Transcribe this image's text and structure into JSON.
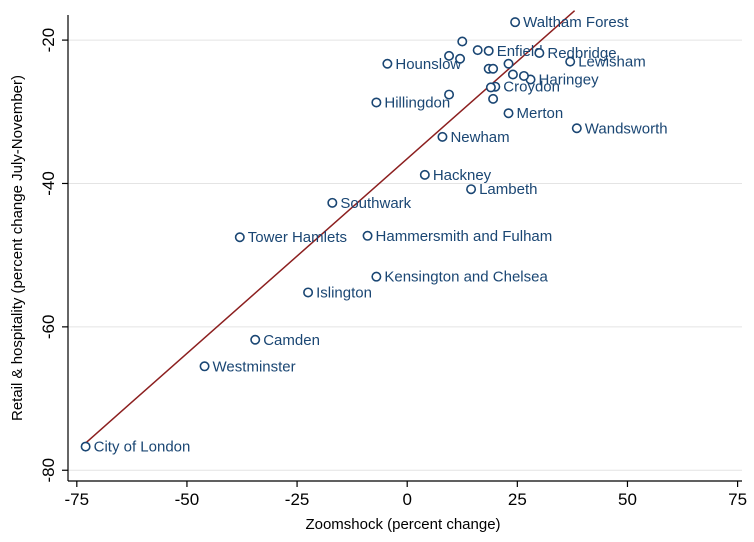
{
  "chart_data": {
    "type": "scatter",
    "title": "",
    "xlabel": "Zoomshock (percent change)",
    "ylabel": "Retail & hospitality (percent change July-November)",
    "xlim": [
      -77,
      76
    ],
    "ylim": [
      -81.5,
      -16.5
    ],
    "xticks": [
      -75,
      -50,
      -25,
      0,
      25,
      50,
      75
    ],
    "yticks": [
      -20,
      -40,
      -60,
      -80
    ],
    "grid": "horizontal",
    "points": [
      {
        "label": "Waltham Forest",
        "x": 24.5,
        "y": -17.5
      },
      {
        "label": "Enfield",
        "x": 18.5,
        "y": -21.5
      },
      {
        "label": "Redbridge",
        "x": 30.0,
        "y": -21.8
      },
      {
        "label": "Lewisham",
        "x": 37.0,
        "y": -23.0
      },
      {
        "label": "Hounslow",
        "x": -4.5,
        "y": -23.3
      },
      {
        "label": "Haringey",
        "x": 28.0,
        "y": -25.5
      },
      {
        "label": "Croydon",
        "x": 20.0,
        "y": -26.5
      },
      {
        "label": "Hillingdon",
        "x": -7.0,
        "y": -28.7
      },
      {
        "label": "Merton",
        "x": 23.0,
        "y": -30.2
      },
      {
        "label": "Wandsworth",
        "x": 38.5,
        "y": -32.3
      },
      {
        "label": "Newham",
        "x": 8.0,
        "y": -33.5
      },
      {
        "label": "Hackney",
        "x": 4.0,
        "y": -38.8
      },
      {
        "label": "Lambeth",
        "x": 14.5,
        "y": -40.8
      },
      {
        "label": "Southwark",
        "x": -17.0,
        "y": -42.7
      },
      {
        "label": "Tower Hamlets",
        "x": -38.0,
        "y": -47.5
      },
      {
        "label": "Hammersmith and Fulham",
        "x": -9.0,
        "y": -47.3
      },
      {
        "label": "Kensington and Chelsea",
        "x": -7.0,
        "y": -53.0
      },
      {
        "label": "Islington",
        "x": -22.5,
        "y": -55.2
      },
      {
        "label": "Camden",
        "x": -34.5,
        "y": -61.8
      },
      {
        "label": "Westminster",
        "x": -46.0,
        "y": -65.5
      },
      {
        "label": "City of London",
        "x": -73.0,
        "y": -76.7
      },
      {
        "label": "",
        "x": 12.5,
        "y": -20.2
      },
      {
        "label": "",
        "x": 16.0,
        "y": -21.4
      },
      {
        "label": "",
        "x": 9.5,
        "y": -22.2
      },
      {
        "label": "",
        "x": 12.0,
        "y": -22.6
      },
      {
        "label": "",
        "x": 23.0,
        "y": -23.3
      },
      {
        "label": "",
        "x": 18.5,
        "y": -24.0
      },
      {
        "label": "",
        "x": 19.5,
        "y": -24.0
      },
      {
        "label": "",
        "x": 24.0,
        "y": -24.8
      },
      {
        "label": "",
        "x": 26.5,
        "y": -25.0
      },
      {
        "label": "",
        "x": 19.0,
        "y": -26.6
      },
      {
        "label": "",
        "x": 9.5,
        "y": -27.6
      },
      {
        "label": "",
        "x": 19.5,
        "y": -28.2
      }
    ],
    "fit_line": {
      "x": [
        -73,
        38
      ],
      "y": [
        -76.2,
        -15.9
      ]
    },
    "colors": {
      "points": "#1a4673",
      "fit_line": "#8c1f1f",
      "grid": "#e4e4e4"
    }
  }
}
